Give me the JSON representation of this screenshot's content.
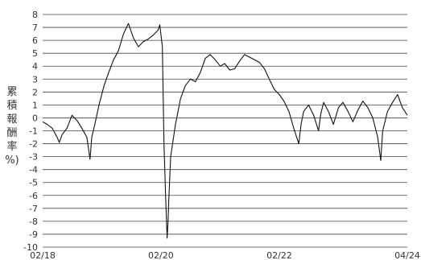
{
  "chart_data": {
    "type": "line",
    "title": "",
    "xlabel": "",
    "ylabel": "累積報酬率%)",
    "ylabel_chars": [
      "累",
      "積",
      "報",
      "酬",
      "率",
      "%)"
    ],
    "xlim": [
      "2018-02",
      "2024-04"
    ],
    "ylim": [
      -10,
      8
    ],
    "grid": "horizontal",
    "legend": "none",
    "colors": {
      "line": "#111111",
      "grid": "#444444"
    },
    "y_ticks": [
      "8",
      "7",
      "6",
      "5",
      "4",
      "3",
      "2",
      "1",
      "0",
      "-1",
      "-2",
      "-3",
      "-4",
      "-5",
      "-6",
      "-7",
      "-8",
      "-9",
      "-10"
    ],
    "x_ticks": [
      {
        "label": "02/18",
        "date": "2018-02"
      },
      {
        "label": "02/20",
        "date": "2020-02"
      },
      {
        "label": "02/22",
        "date": "2022-02"
      },
      {
        "label": "04/24",
        "date": "2024-04"
      }
    ],
    "series": [
      {
        "x": [
          "2018-02-01",
          "2018-03-01",
          "2018-04-01",
          "2018-05-01",
          "2018-05-15",
          "2018-06-01",
          "2018-07-01",
          "2018-08-01",
          "2018-09-01",
          "2018-10-01",
          "2018-11-01",
          "2018-11-20",
          "2018-12-01",
          "2018-12-20",
          "2019-01-15",
          "2019-02-15",
          "2019-03-15",
          "2019-04-15",
          "2019-05-15",
          "2019-06-15",
          "2019-07-15",
          "2019-08-15",
          "2019-09-15",
          "2019-10-15",
          "2019-11-15",
          "2019-12-15",
          "2020-01-15",
          "2020-01-25",
          "2020-02-10",
          "2020-02-20",
          "2020-03-01",
          "2020-03-10",
          "2020-03-16",
          "2020-03-20",
          "2020-04-01",
          "2020-05-01",
          "2020-06-01",
          "2020-07-01",
          "2020-08-01",
          "2020-09-01",
          "2020-10-01",
          "2020-11-01",
          "2020-12-01",
          "2021-01-01",
          "2021-02-01",
          "2021-03-01",
          "2021-04-01",
          "2021-05-01",
          "2021-06-01",
          "2021-07-01",
          "2021-08-01",
          "2021-09-01",
          "2021-10-01",
          "2021-11-01",
          "2021-12-01",
          "2022-01-01",
          "2022-02-01",
          "2022-03-01",
          "2022-04-01",
          "2022-05-01",
          "2022-06-01",
          "2022-06-15",
          "2022-07-01",
          "2022-08-01",
          "2022-09-01",
          "2022-10-01",
          "2022-10-15",
          "2022-11-01",
          "2022-12-01",
          "2023-01-01",
          "2023-02-01",
          "2023-03-01",
          "2023-04-01",
          "2023-05-01",
          "2023-06-01",
          "2023-07-01",
          "2023-08-01",
          "2023-09-01",
          "2023-10-01",
          "2023-10-20",
          "2023-11-01",
          "2023-12-01",
          "2024-01-01",
          "2024-02-01",
          "2024-03-01",
          "2024-04-01"
        ],
        "y": [
          -0.3,
          -0.5,
          -0.8,
          -1.5,
          -1.9,
          -1.3,
          -0.8,
          0.2,
          -0.2,
          -0.8,
          -1.5,
          -3.2,
          -1.5,
          -0.5,
          1.0,
          2.5,
          3.5,
          4.5,
          5.2,
          6.5,
          7.3,
          6.2,
          5.5,
          5.9,
          6.1,
          6.4,
          6.8,
          7.2,
          5.5,
          -2.0,
          -6.0,
          -9.3,
          -8.0,
          -6.5,
          -3.0,
          -0.5,
          1.5,
          2.5,
          3.0,
          2.8,
          3.5,
          4.6,
          4.9,
          4.5,
          4.0,
          4.2,
          3.7,
          3.8,
          4.4,
          4.9,
          4.7,
          4.5,
          4.3,
          3.8,
          3.0,
          2.2,
          1.8,
          1.3,
          0.5,
          -0.8,
          -2.0,
          -0.5,
          0.5,
          1.0,
          0.2,
          -1.0,
          0.3,
          1.2,
          0.5,
          -0.5,
          0.8,
          1.2,
          0.5,
          -0.3,
          0.6,
          1.3,
          0.8,
          0.0,
          -1.5,
          -3.3,
          -1.0,
          0.5,
          1.2,
          1.8,
          0.8,
          0.2
        ]
      }
    ]
  }
}
